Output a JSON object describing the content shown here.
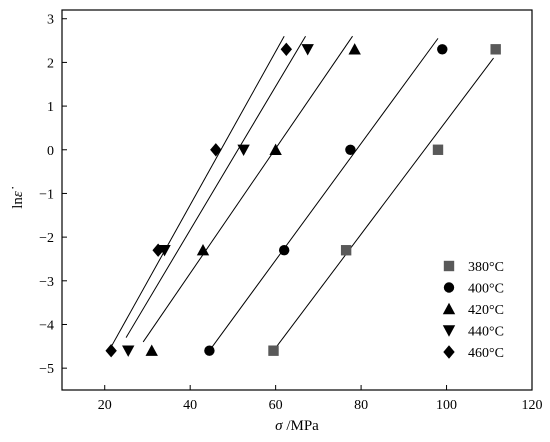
{
  "chart_data": {
    "type": "scatter",
    "xlabel_symbol": "σ",
    "xlabel_unit": " /MPa",
    "ylabel_main": "ln",
    "ylabel_symbol": "ε̇",
    "xlim": [
      10,
      120
    ],
    "ylim": [
      -5.5,
      3.2
    ],
    "xticks": [
      20,
      40,
      60,
      80,
      100,
      120
    ],
    "yticks": [
      -5,
      -4,
      -3,
      -2,
      -1,
      0,
      1,
      2,
      3
    ],
    "grid": false,
    "legend_position": "bottom-right",
    "series": [
      {
        "name": "380°C",
        "marker": "square",
        "color": "#595959",
        "points": [
          [
            59.5,
            -4.6
          ],
          [
            76.5,
            -2.3
          ],
          [
            98,
            0
          ],
          [
            111.5,
            2.3
          ]
        ],
        "fit": [
          [
            59.5,
            -4.6
          ],
          [
            111,
            2.1
          ]
        ]
      },
      {
        "name": "400°C",
        "marker": "circle",
        "color": "#000000",
        "points": [
          [
            44.5,
            -4.6
          ],
          [
            62,
            -2.3
          ],
          [
            77.5,
            0
          ],
          [
            99,
            2.3
          ]
        ],
        "fit": [
          [
            44.5,
            -4.6
          ],
          [
            98,
            2.55
          ]
        ]
      },
      {
        "name": "420°C",
        "marker": "triangle-up",
        "color": "#000000",
        "points": [
          [
            31,
            -4.6
          ],
          [
            43,
            -2.3
          ],
          [
            60,
            0
          ],
          [
            78.5,
            2.3
          ]
        ],
        "fit": [
          [
            29,
            -4.4
          ],
          [
            78,
            2.6
          ]
        ]
      },
      {
        "name": "440°C",
        "marker": "triangle-down",
        "color": "#000000",
        "points": [
          [
            25.5,
            -4.6
          ],
          [
            34,
            -2.3
          ],
          [
            52.5,
            0
          ],
          [
            67.5,
            2.3
          ]
        ],
        "fit": [
          [
            25,
            -4.3
          ],
          [
            67,
            2.6
          ]
        ]
      },
      {
        "name": "460°C",
        "marker": "diamond",
        "color": "#000000",
        "points": [
          [
            21.5,
            -4.6
          ],
          [
            32.5,
            -2.3
          ],
          [
            46,
            0
          ],
          [
            62.5,
            2.3
          ]
        ],
        "fit": [
          [
            21,
            -4.6
          ],
          [
            62,
            2.6
          ]
        ]
      }
    ]
  }
}
